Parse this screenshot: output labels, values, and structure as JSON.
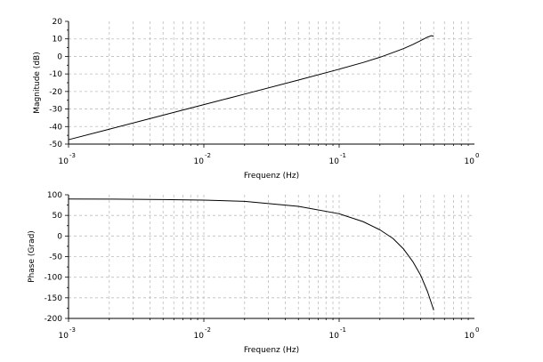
{
  "chart_data": [
    {
      "type": "line",
      "xlabel": "Frequenz (Hz)",
      "ylabel": "Magnitude (dB)",
      "xscale": "log",
      "xlim": [
        0.001,
        1
      ],
      "ylim": [
        -50,
        20
      ],
      "grid": true,
      "x_ticks": [
        {
          "base": "10",
          "exp": "-3",
          "value": 0.001
        },
        {
          "base": "10",
          "exp": "-2",
          "value": 0.01
        },
        {
          "base": "10",
          "exp": "-1",
          "value": 0.1
        },
        {
          "base": "10",
          "exp": "0",
          "value": 1
        }
      ],
      "y_ticks": [
        "20",
        "10",
        "0",
        "-10",
        "-20",
        "-30",
        "-40",
        "-50"
      ],
      "series": [
        {
          "x": [
            0.001,
            0.002,
            0.005,
            0.01,
            0.02,
            0.05,
            0.1,
            0.15,
            0.2,
            0.25,
            0.3,
            0.35,
            0.4,
            0.45,
            0.48,
            0.5
          ],
          "y": [
            -47.5,
            -41.5,
            -33.5,
            -27.5,
            -21.5,
            -13.5,
            -7.3,
            -3.5,
            -0.5,
            2.2,
            4.5,
            6.8,
            9.0,
            11.0,
            11.8,
            11.5
          ]
        }
      ]
    },
    {
      "type": "line",
      "xlabel": "Frequenz (Hz)",
      "ylabel": "Phase (Grad)",
      "xscale": "log",
      "xlim": [
        0.001,
        1
      ],
      "ylim": [
        -200,
        100
      ],
      "grid": true,
      "x_ticks": [
        {
          "base": "10",
          "exp": "-3",
          "value": 0.001
        },
        {
          "base": "10",
          "exp": "-2",
          "value": 0.01
        },
        {
          "base": "10",
          "exp": "-1",
          "value": 0.1
        },
        {
          "base": "10",
          "exp": "0",
          "value": 1
        }
      ],
      "y_ticks": [
        "100",
        "50",
        "0",
        "-50",
        "-100",
        "-150",
        "-200"
      ],
      "series": [
        {
          "x": [
            0.001,
            0.002,
            0.005,
            0.01,
            0.02,
            0.05,
            0.1,
            0.15,
            0.2,
            0.25,
            0.3,
            0.35,
            0.4,
            0.45,
            0.5
          ],
          "y": [
            89.8,
            89.5,
            88.5,
            87,
            84,
            72,
            54,
            35,
            15,
            -6,
            -32,
            -62,
            -95,
            -135,
            -180
          ]
        }
      ]
    }
  ]
}
